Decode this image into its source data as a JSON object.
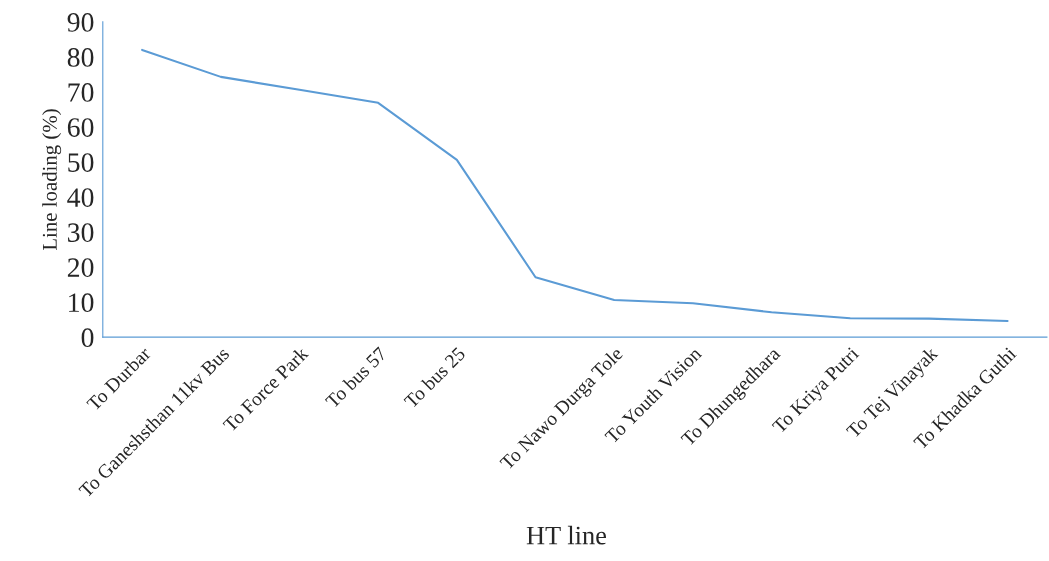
{
  "chart_data": {
    "type": "line",
    "xlabel": "HT line",
    "ylabel": "Line loading (%)",
    "categories": [
      "To Durbar",
      "To Ganeshsthan 11kv Bus",
      "To Force Park",
      "To bus 57",
      "To bus 25",
      null,
      "To Nawo Durga Tole",
      "To Youth Vision",
      "To Dhungedhara",
      "To Kriya Putri",
      "To Tej Vinayak",
      "To Khadka Guthi"
    ],
    "series": [
      {
        "color": "#5b9bd5",
        "values": [
          82.0,
          74.3,
          70.6,
          66.9,
          50.6,
          17.1,
          10.6,
          9.7,
          7.1,
          5.4,
          5.3,
          4.6
        ]
      }
    ],
    "ylim": [
      0,
      90
    ],
    "yticks": [
      0,
      10,
      20,
      30,
      40,
      50,
      60,
      70,
      80,
      90
    ],
    "grid": false,
    "legend": false,
    "marker": "none",
    "line_style": "solid"
  }
}
